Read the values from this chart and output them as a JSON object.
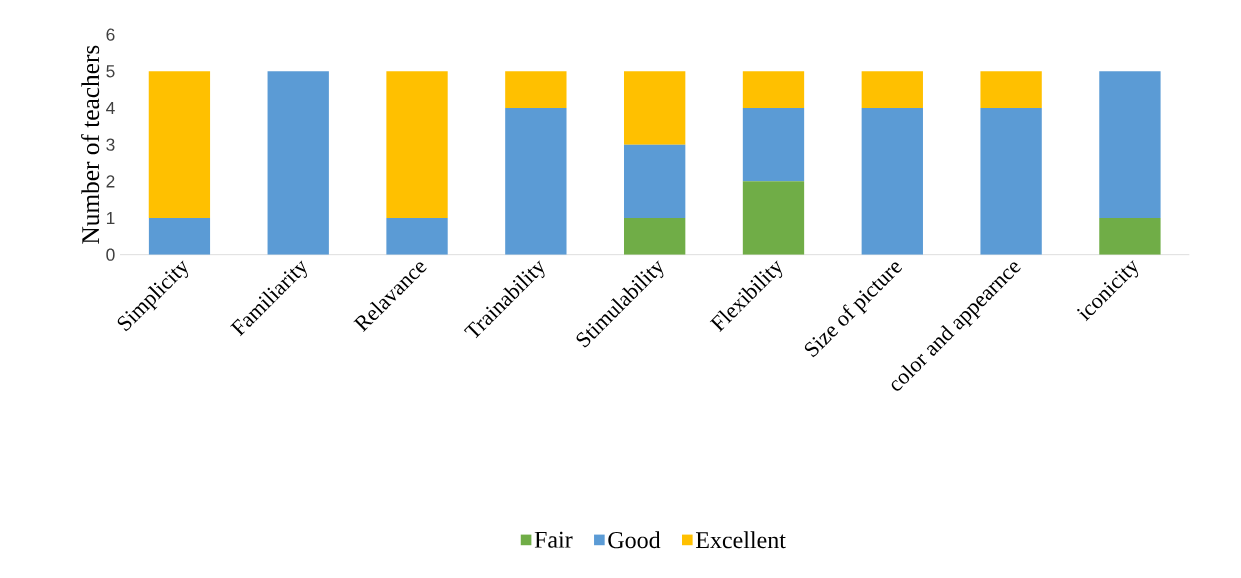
{
  "chart_data": {
    "type": "bar",
    "stacked": true,
    "ylabel": "Number of teachers",
    "categories": [
      "Simplicity",
      "Familiarity",
      "Relavance",
      "Trainability",
      "Stimulability",
      "Flexibility",
      "Size of picture",
      "color and appearnce",
      "iconicity"
    ],
    "series": [
      {
        "name": "Fair",
        "color": "#70ad47",
        "values": [
          0,
          0,
          0,
          0,
          1,
          2,
          0,
          0,
          1
        ]
      },
      {
        "name": "Good",
        "color": "#5b9bd5",
        "values": [
          1,
          5,
          1,
          4,
          2,
          2,
          4,
          4,
          4
        ]
      },
      {
        "name": "Excellent",
        "color": "#ffc000",
        "values": [
          4,
          0,
          4,
          1,
          2,
          1,
          1,
          1,
          0
        ]
      }
    ],
    "ylim": [
      0,
      6
    ],
    "yticks": [
      0,
      1,
      2,
      3,
      4,
      5,
      6
    ],
    "legend": "bottom"
  }
}
